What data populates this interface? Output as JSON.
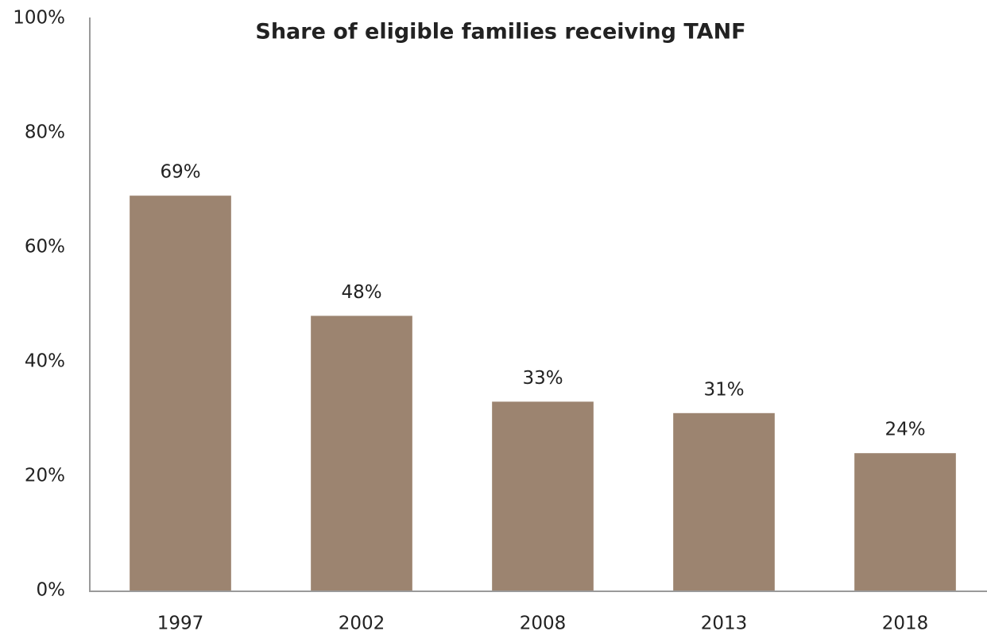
{
  "chart_data": {
    "type": "bar",
    "title": "Share of eligible families receiving TANF",
    "categories": [
      "1997",
      "2002",
      "2008",
      "2013",
      "2018"
    ],
    "values": [
      69,
      48,
      33,
      31,
      24
    ],
    "value_labels": [
      "69%",
      "48%",
      "33%",
      "31%",
      "24%"
    ],
    "color": "#9c8470",
    "ylim": [
      0,
      100
    ],
    "yticks": [
      {
        "value": 0,
        "label": "0%"
      },
      {
        "value": 20,
        "label": "20%"
      },
      {
        "value": 40,
        "label": "40%"
      },
      {
        "value": 60,
        "label": "60%"
      },
      {
        "value": 80,
        "label": "80%"
      },
      {
        "value": 100,
        "label": "100%"
      }
    ],
    "grid": false
  }
}
